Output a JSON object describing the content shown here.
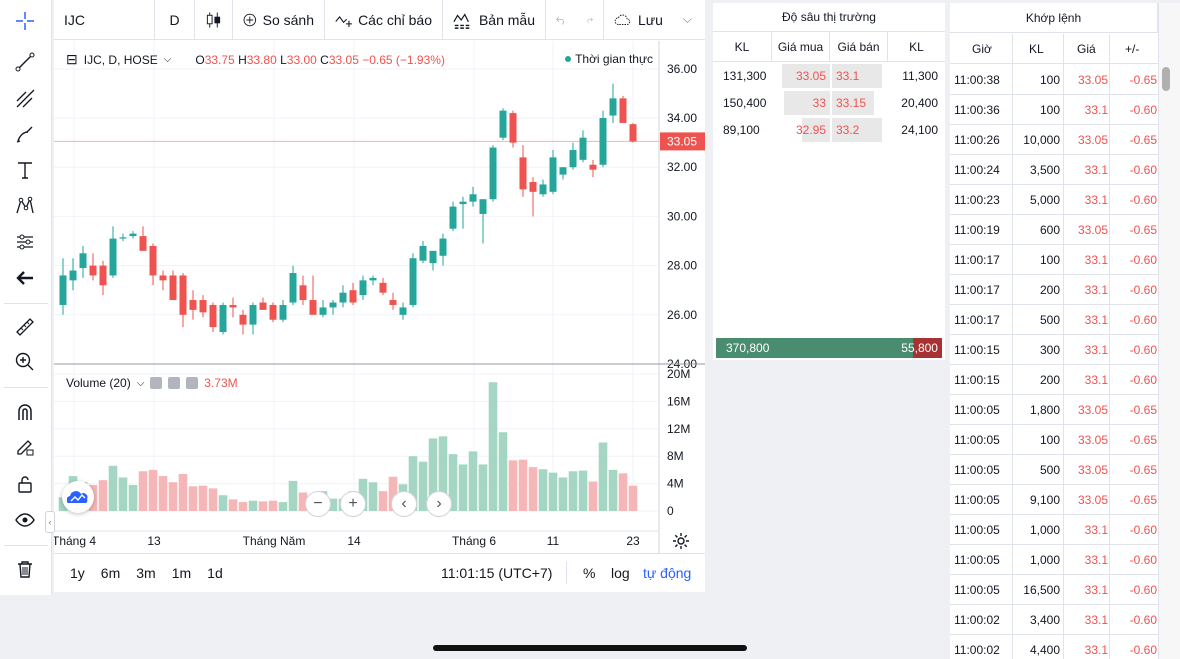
{
  "toolbar": {
    "symbol": "IJC",
    "interval": "D",
    "compare_label": "So sánh",
    "indicators_label": "Các chỉ báo",
    "templates_label": "Bản mẫu",
    "save_label": "Lưu"
  },
  "chart_legend": {
    "title": "IJC, D, HOSE",
    "open_key": "O",
    "open": "33.75",
    "high_key": "H",
    "high": "33.80",
    "low_key": "L",
    "low": "33.00",
    "close_key": "C",
    "close": "33.05",
    "change": "−0.65 (−1.93%)",
    "realtime_label": "Thời gian thực"
  },
  "volume_legend": {
    "label": "Volume (20)",
    "value": "3.73M"
  },
  "price_axis": {
    "ticks": [
      "36.00",
      "34.00",
      "32.00",
      "30.00",
      "28.00",
      "26.00",
      "24.00"
    ],
    "last_price": "33.05"
  },
  "volume_axis": {
    "ticks": [
      "20M",
      "16M",
      "12M",
      "8M",
      "4M",
      "0"
    ]
  },
  "time_axis": {
    "labels": [
      "Tháng 4",
      "13",
      "Tháng Năm",
      "14",
      "Tháng 6",
      "11",
      "23"
    ]
  },
  "bottom_bar": {
    "ranges": [
      "1y",
      "6m",
      "3m",
      "1m",
      "1d"
    ],
    "clock": "11:01:15 (UTC+7)",
    "percent_label": "%",
    "log_label": "log",
    "auto_label": "tự động"
  },
  "depth": {
    "title": "Độ sâu thị trường",
    "headers": [
      "KL",
      "Giá mua",
      "Giá bán",
      "KL"
    ],
    "rows": [
      {
        "bid_vol": "131,300",
        "bid": "33.05",
        "ask": "33.1",
        "ask_vol": "11,300"
      },
      {
        "bid_vol": "150,400",
        "bid": "33",
        "ask": "33.15",
        "ask_vol": "20,400"
      },
      {
        "bid_vol": "89,100",
        "bid": "32.95",
        "ask": "33.2",
        "ask_vol": "24,100"
      }
    ],
    "total_buy": "370,800",
    "total_sell": "55,800",
    "buy_fraction": 0.87
  },
  "trades": {
    "title": "Khớp lệnh",
    "headers": [
      "Giờ",
      "KL",
      "Giá",
      "+/-"
    ],
    "rows": [
      {
        "time": "11:00:38",
        "vol": "100",
        "price": "33.05",
        "chg": "-0.65"
      },
      {
        "time": "11:00:36",
        "vol": "100",
        "price": "33.1",
        "chg": "-0.60"
      },
      {
        "time": "11:00:26",
        "vol": "10,000",
        "price": "33.05",
        "chg": "-0.65"
      },
      {
        "time": "11:00:24",
        "vol": "3,500",
        "price": "33.1",
        "chg": "-0.60"
      },
      {
        "time": "11:00:23",
        "vol": "5,000",
        "price": "33.1",
        "chg": "-0.60"
      },
      {
        "time": "11:00:19",
        "vol": "600",
        "price": "33.05",
        "chg": "-0.65"
      },
      {
        "time": "11:00:17",
        "vol": "100",
        "price": "33.1",
        "chg": "-0.60"
      },
      {
        "time": "11:00:17",
        "vol": "200",
        "price": "33.1",
        "chg": "-0.60"
      },
      {
        "time": "11:00:17",
        "vol": "500",
        "price": "33.1",
        "chg": "-0.60"
      },
      {
        "time": "11:00:15",
        "vol": "300",
        "price": "33.1",
        "chg": "-0.60"
      },
      {
        "time": "11:00:15",
        "vol": "200",
        "price": "33.1",
        "chg": "-0.60"
      },
      {
        "time": "11:00:05",
        "vol": "1,800",
        "price": "33.05",
        "chg": "-0.65"
      },
      {
        "time": "11:00:05",
        "vol": "100",
        "price": "33.05",
        "chg": "-0.65"
      },
      {
        "time": "11:00:05",
        "vol": "500",
        "price": "33.05",
        "chg": "-0.65"
      },
      {
        "time": "11:00:05",
        "vol": "9,100",
        "price": "33.05",
        "chg": "-0.65"
      },
      {
        "time": "11:00:05",
        "vol": "1,000",
        "price": "33.1",
        "chg": "-0.60"
      },
      {
        "time": "11:00:05",
        "vol": "1,000",
        "price": "33.1",
        "chg": "-0.60"
      },
      {
        "time": "11:00:05",
        "vol": "16,500",
        "price": "33.1",
        "chg": "-0.60"
      },
      {
        "time": "11:00:02",
        "vol": "3,400",
        "price": "33.1",
        "chg": "-0.60"
      },
      {
        "time": "11:00:02",
        "vol": "4,400",
        "price": "33.1",
        "chg": "-0.60"
      }
    ]
  },
  "colors": {
    "up": "#26a69a",
    "down": "#ef5350",
    "up_volume": "#a5d6c3",
    "down_volume": "#f4b6b6",
    "accent": "#2962ff"
  },
  "chart_data": {
    "type": "candlestick",
    "ylim": [
      24,
      36.4
    ],
    "volume_ylim": [
      0,
      20
    ],
    "volume_unit": "M",
    "candles": [
      {
        "o": 26.4,
        "h": 28.3,
        "l": 26.0,
        "c": 27.6
      },
      {
        "o": 27.4,
        "h": 28.3,
        "l": 27.0,
        "c": 27.8
      },
      {
        "o": 27.9,
        "h": 28.8,
        "l": 27.5,
        "c": 28.5
      },
      {
        "o": 28.0,
        "h": 28.5,
        "l": 27.4,
        "c": 27.6
      },
      {
        "o": 28.0,
        "h": 28.2,
        "l": 26.8,
        "c": 27.2
      },
      {
        "o": 27.6,
        "h": 29.6,
        "l": 27.5,
        "c": 29.1
      },
      {
        "o": 29.1,
        "h": 29.3,
        "l": 29.0,
        "c": 29.15
      },
      {
        "o": 29.2,
        "h": 29.4,
        "l": 29.1,
        "c": 29.3
      },
      {
        "o": 29.2,
        "h": 29.6,
        "l": 28.7,
        "c": 28.6
      },
      {
        "o": 28.8,
        "h": 28.9,
        "l": 27.2,
        "c": 27.6
      },
      {
        "o": 27.6,
        "h": 27.8,
        "l": 27.0,
        "c": 27.4
      },
      {
        "o": 27.6,
        "h": 27.8,
        "l": 26.6,
        "c": 26.6
      },
      {
        "o": 27.6,
        "h": 27.7,
        "l": 25.5,
        "c": 26.0
      },
      {
        "o": 26.6,
        "h": 27.0,
        "l": 25.8,
        "c": 26.2
      },
      {
        "o": 26.6,
        "h": 26.8,
        "l": 25.9,
        "c": 26.1
      },
      {
        "o": 26.4,
        "h": 26.5,
        "l": 25.3,
        "c": 25.5
      },
      {
        "o": 25.3,
        "h": 26.5,
        "l": 25.2,
        "c": 26.4
      },
      {
        "o": 26.4,
        "h": 26.7,
        "l": 25.9,
        "c": 26.3
      },
      {
        "o": 26.0,
        "h": 26.2,
        "l": 25.2,
        "c": 25.6
      },
      {
        "o": 25.6,
        "h": 26.5,
        "l": 25.2,
        "c": 26.4
      },
      {
        "o": 26.5,
        "h": 26.7,
        "l": 26.2,
        "c": 26.2
      },
      {
        "o": 26.4,
        "h": 26.5,
        "l": 25.7,
        "c": 25.8
      },
      {
        "o": 25.8,
        "h": 26.6,
        "l": 25.7,
        "c": 26.4
      },
      {
        "o": 26.5,
        "h": 28.0,
        "l": 26.4,
        "c": 27.7
      },
      {
        "o": 27.2,
        "h": 27.6,
        "l": 26.4,
        "c": 26.6
      },
      {
        "o": 26.6,
        "h": 27.6,
        "l": 26.0,
        "c": 26.0
      },
      {
        "o": 26.0,
        "h": 26.6,
        "l": 25.9,
        "c": 26.3
      },
      {
        "o": 26.3,
        "h": 26.6,
        "l": 26.0,
        "c": 26.5
      },
      {
        "o": 26.5,
        "h": 27.2,
        "l": 26.3,
        "c": 26.9
      },
      {
        "o": 27.0,
        "h": 27.3,
        "l": 26.4,
        "c": 26.5
      },
      {
        "o": 26.8,
        "h": 27.6,
        "l": 26.6,
        "c": 27.4
      },
      {
        "o": 27.4,
        "h": 27.6,
        "l": 27.2,
        "c": 27.5
      },
      {
        "o": 27.3,
        "h": 27.5,
        "l": 26.8,
        "c": 26.9
      },
      {
        "o": 26.6,
        "h": 26.9,
        "l": 26.2,
        "c": 26.4
      },
      {
        "o": 26.0,
        "h": 26.5,
        "l": 25.8,
        "c": 26.3
      },
      {
        "o": 26.4,
        "h": 28.5,
        "l": 26.3,
        "c": 28.3
      },
      {
        "o": 28.2,
        "h": 29.0,
        "l": 28.1,
        "c": 28.8
      },
      {
        "o": 28.1,
        "h": 28.6,
        "l": 27.8,
        "c": 28.6
      },
      {
        "o": 28.4,
        "h": 29.3,
        "l": 28.0,
        "c": 29.1
      },
      {
        "o": 29.5,
        "h": 30.6,
        "l": 29.4,
        "c": 30.4
      },
      {
        "o": 30.5,
        "h": 30.8,
        "l": 29.5,
        "c": 30.6
      },
      {
        "o": 30.6,
        "h": 31.2,
        "l": 30.4,
        "c": 30.9
      },
      {
        "o": 30.1,
        "h": 30.7,
        "l": 28.9,
        "c": 30.7
      },
      {
        "o": 30.7,
        "h": 32.9,
        "l": 30.6,
        "c": 32.8
      },
      {
        "o": 33.2,
        "h": 34.4,
        "l": 33.1,
        "c": 34.3
      },
      {
        "o": 34.2,
        "h": 34.3,
        "l": 32.8,
        "c": 33.0
      },
      {
        "o": 32.4,
        "h": 32.9,
        "l": 30.8,
        "c": 31.1
      },
      {
        "o": 31.4,
        "h": 31.6,
        "l": 30.0,
        "c": 31.0
      },
      {
        "o": 30.9,
        "h": 31.5,
        "l": 30.8,
        "c": 31.3
      },
      {
        "o": 31.0,
        "h": 32.7,
        "l": 30.9,
        "c": 32.4
      },
      {
        "o": 31.7,
        "h": 32.0,
        "l": 31.5,
        "c": 32.0
      },
      {
        "o": 32.0,
        "h": 33.0,
        "l": 31.9,
        "c": 32.7
      },
      {
        "o": 32.3,
        "h": 33.5,
        "l": 32.2,
        "c": 33.2
      },
      {
        "o": 32.1,
        "h": 32.3,
        "l": 31.6,
        "c": 31.9
      },
      {
        "o": 32.1,
        "h": 34.3,
        "l": 32.0,
        "c": 34.0
      },
      {
        "o": 34.1,
        "h": 35.4,
        "l": 33.8,
        "c": 34.8
      },
      {
        "o": 34.8,
        "h": 34.9,
        "l": 33.9,
        "c": 33.8
      },
      {
        "o": 33.75,
        "h": 33.8,
        "l": 33.0,
        "c": 33.05
      }
    ],
    "volumes": [
      2.0,
      5.1,
      4.2,
      3.8,
      4.5,
      6.6,
      4.9,
      3.8,
      5.8,
      6.0,
      5.1,
      4.2,
      5.4,
      3.6,
      3.7,
      3.3,
      2.3,
      1.7,
      1.3,
      1.5,
      1.4,
      1.5,
      1.3,
      4.4,
      2.7,
      1.6,
      2.9,
      1.8,
      1.8,
      2.9,
      4.7,
      4.2,
      2.9,
      5.0,
      3.9,
      8.0,
      7.2,
      10.6,
      10.9,
      8.3,
      6.8,
      8.7,
      6.8,
      18.8,
      11.5,
      7.4,
      7.5,
      6.4,
      6.1,
      5.6,
      4.9,
      5.8,
      5.9,
      4.3,
      10.0,
      6.0,
      5.5,
      3.7
    ],
    "last_price_line": 33.05
  }
}
